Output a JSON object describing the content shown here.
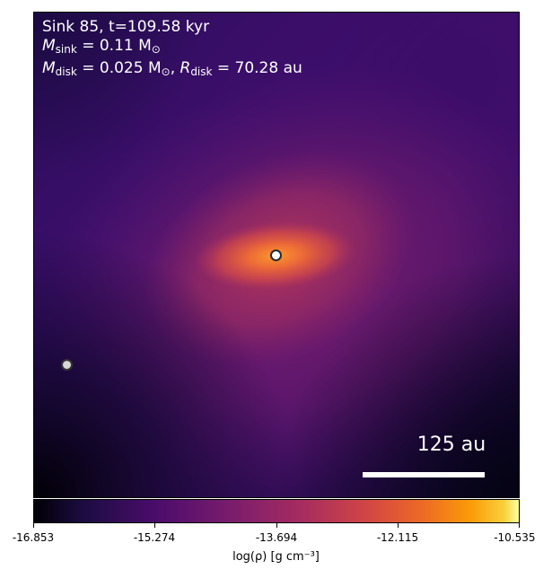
{
  "info": {
    "title": "Sink 85, t=109.58 kyr",
    "m_sink_symbol": "M",
    "m_sink_sub": "sink",
    "m_sink_value": " = 0.11 M",
    "m_sink_unit_sub": "⊙",
    "m_disk_symbol": "M",
    "m_disk_sub": "disk",
    "m_disk_value": " = 0.025 M",
    "m_disk_unit_sub": "⊙",
    "r_disk_sep": ", ",
    "r_disk_symbol": "R",
    "r_disk_sub": "disk",
    "r_disk_value": " = 70.28 au"
  },
  "scale_bar": {
    "label": "125 au"
  },
  "colorbar": {
    "colormap": "inferno",
    "min": -16.853,
    "max": -10.535,
    "tick_labels": [
      "-16.853",
      "-15.274",
      "-13.694",
      "-12.115",
      "-10.535"
    ],
    "label": "log(ρ) [g cm⁻³]"
  },
  "colors": {
    "background_dark": "#1b0c41",
    "core": "#f4823a",
    "sink_marker": "#ffffff"
  }
}
